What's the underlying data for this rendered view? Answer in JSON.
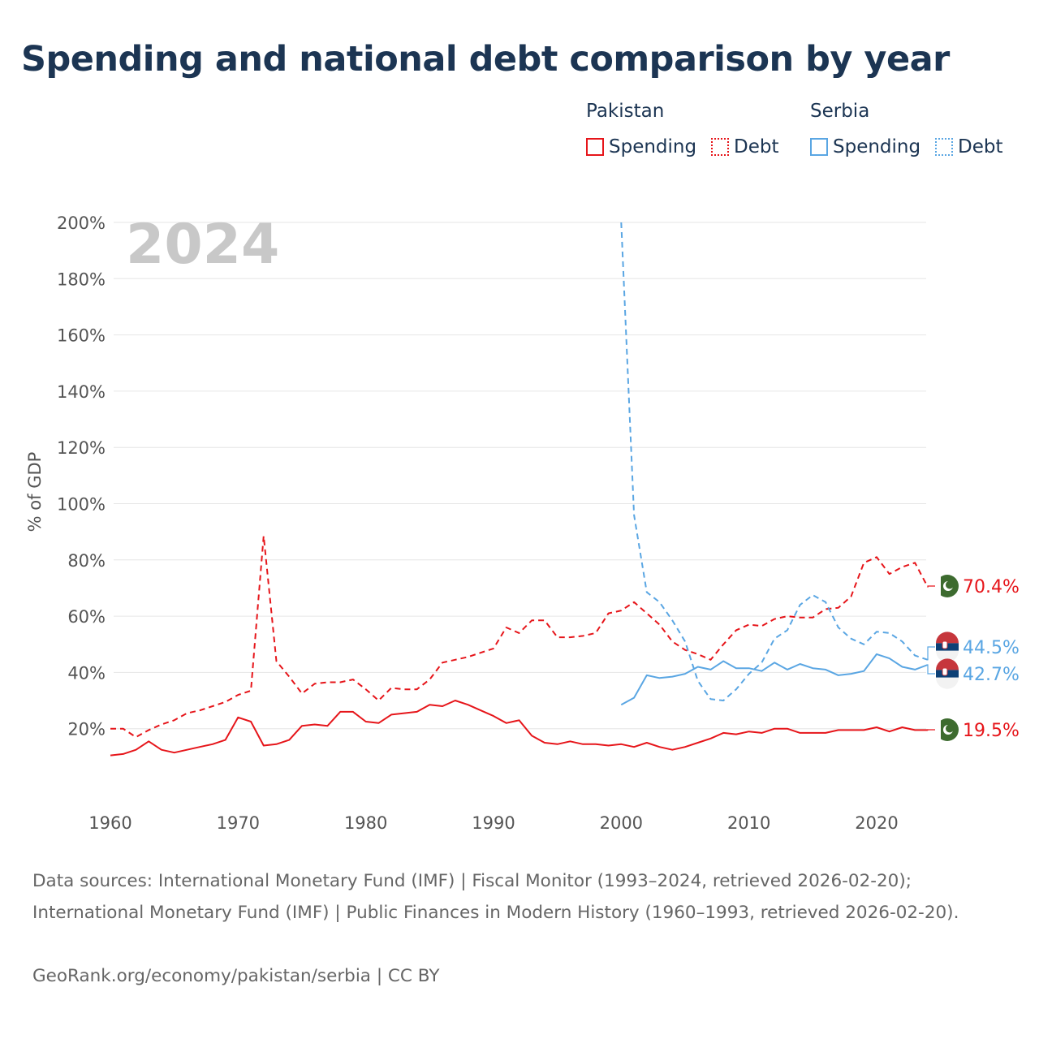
{
  "title": "Spending and national debt comparison by year",
  "legend": {
    "countries": [
      {
        "name": "Pakistan",
        "color": "#e6151a",
        "items": [
          {
            "label": "Spending",
            "style": "solid"
          },
          {
            "label": "Debt",
            "style": "dotted"
          }
        ]
      },
      {
        "name": "Serbia",
        "color": "#5aa6e3",
        "items": [
          {
            "label": "Spending",
            "style": "solid"
          },
          {
            "label": "Debt",
            "style": "dotted"
          }
        ]
      }
    ]
  },
  "year_watermark": "2024",
  "footer": {
    "sources": "Data sources: International Monetary Fund (IMF) | Fiscal Monitor (1993–2024, retrieved 2026-02-20); International Monetary Fund (IMF) | Public Finances in Modern History (1960–1993, retrieved 2026-02-20).",
    "credit": "GeoRank.org/economy/pakistan/serbia | CC BY"
  },
  "chart_data": {
    "type": "line",
    "title": "Spending and national debt comparison by year",
    "xlabel": "",
    "ylabel": "% of GDP",
    "xlim": [
      1960,
      2024
    ],
    "ylim": [
      0,
      200
    ],
    "x_ticks": [
      "1960",
      "1970",
      "1980",
      "1990",
      "2000",
      "2010",
      "2020"
    ],
    "y_ticks": [
      "20%",
      "40%",
      "60%",
      "80%",
      "100%",
      "120%",
      "140%",
      "160%",
      "180%",
      "200%"
    ],
    "grid": true,
    "legend_position": "top-right",
    "series": [
      {
        "name": "Pakistan Debt",
        "country": "Pakistan",
        "kind": "Debt",
        "color": "#e6151a",
        "dash": true,
        "end_label": "70.4%",
        "flag": "pakistan",
        "x": [
          1960,
          1961,
          1962,
          1963,
          1964,
          1965,
          1966,
          1967,
          1968,
          1969,
          1970,
          1971,
          1972,
          1973,
          1974,
          1975,
          1976,
          1977,
          1978,
          1979,
          1980,
          1981,
          1982,
          1983,
          1984,
          1985,
          1986,
          1987,
          1988,
          1989,
          1990,
          1991,
          1992,
          1993,
          1994,
          1995,
          1996,
          1997,
          1998,
          1999,
          2000,
          2001,
          2002,
          2003,
          2004,
          2005,
          2006,
          2007,
          2008,
          2009,
          2010,
          2011,
          2012,
          2013,
          2014,
          2015,
          2016,
          2017,
          2018,
          2019,
          2020,
          2021,
          2022,
          2023,
          2024
        ],
        "values": [
          20,
          20,
          17,
          19.5,
          21.5,
          23,
          25.5,
          26.5,
          28,
          29.5,
          32,
          33.5,
          88.5,
          44,
          38.5,
          32.5,
          36,
          36.5,
          36.5,
          37.5,
          34,
          30,
          34.5,
          34,
          34,
          37.5,
          43.5,
          44.5,
          45.5,
          47,
          48.5,
          56,
          54,
          58.5,
          58.5,
          52.5,
          52.5,
          53,
          54,
          61,
          62,
          65,
          61,
          57,
          51,
          48,
          46.5,
          44.5,
          50,
          55,
          57,
          56.5,
          59,
          60,
          59.5,
          59.5,
          62.5,
          63,
          67,
          79,
          81,
          75,
          77.5,
          79,
          70.4
        ]
      },
      {
        "name": "Pakistan Spending",
        "country": "Pakistan",
        "kind": "Spending",
        "color": "#e6151a",
        "dash": false,
        "end_label": "19.5%",
        "flag": "pakistan",
        "x": [
          1960,
          1961,
          1962,
          1963,
          1964,
          1965,
          1966,
          1967,
          1968,
          1969,
          1970,
          1971,
          1972,
          1973,
          1974,
          1975,
          1976,
          1977,
          1978,
          1979,
          1980,
          1981,
          1982,
          1983,
          1984,
          1985,
          1986,
          1987,
          1988,
          1989,
          1990,
          1991,
          1992,
          1993,
          1994,
          1995,
          1996,
          1997,
          1998,
          1999,
          2000,
          2001,
          2002,
          2003,
          2004,
          2005,
          2006,
          2007,
          2008,
          2009,
          2010,
          2011,
          2012,
          2013,
          2014,
          2015,
          2016,
          2017,
          2018,
          2019,
          2020,
          2021,
          2022,
          2023,
          2024
        ],
        "values": [
          10.5,
          11,
          12.5,
          15.5,
          12.5,
          11.5,
          12.5,
          13.5,
          14.5,
          16,
          24,
          22.5,
          14,
          14.5,
          16,
          21,
          21.5,
          21,
          26,
          26,
          22.5,
          22,
          25,
          25.5,
          26,
          28.5,
          28,
          30,
          28.5,
          26.5,
          24.5,
          22,
          23,
          17.5,
          15,
          14.5,
          15.5,
          14.5,
          14.5,
          14,
          14.5,
          13.5,
          15,
          13.5,
          12.5,
          13.5,
          15,
          16.5,
          18.5,
          18,
          19,
          18.5,
          20,
          20,
          18.5,
          18.5,
          18.5,
          19.5,
          19.5,
          19.5,
          20.5,
          19,
          20.5,
          19.5,
          19.5
        ]
      },
      {
        "name": "Serbia Debt",
        "country": "Serbia",
        "kind": "Debt",
        "color": "#5aa6e3",
        "dash": true,
        "end_label": "44.5%",
        "flag": "serbia",
        "x": [
          2000,
          2001,
          2002,
          2003,
          2004,
          2005,
          2006,
          2007,
          2008,
          2009,
          2010,
          2011,
          2012,
          2013,
          2014,
          2015,
          2016,
          2017,
          2018,
          2019,
          2020,
          2021,
          2022,
          2023,
          2024
        ],
        "values": [
          201,
          96,
          68.5,
          65,
          58.5,
          51,
          37,
          30.5,
          30,
          34,
          39.5,
          43.5,
          52,
          55,
          64,
          67.5,
          65,
          56,
          52,
          50,
          54.5,
          54,
          51,
          46,
          44.5
        ]
      },
      {
        "name": "Serbia Spending",
        "country": "Serbia",
        "kind": "Spending",
        "color": "#5aa6e3",
        "dash": false,
        "end_label": "42.7%",
        "flag": "serbia",
        "x": [
          2000,
          2001,
          2002,
          2003,
          2004,
          2005,
          2006,
          2007,
          2008,
          2009,
          2010,
          2011,
          2012,
          2013,
          2014,
          2015,
          2016,
          2017,
          2018,
          2019,
          2020,
          2021,
          2022,
          2023,
          2024
        ],
        "values": [
          28.5,
          31,
          39,
          38,
          38.5,
          39.5,
          42,
          41,
          44,
          41.5,
          41.5,
          40.5,
          43.5,
          41,
          43,
          41.5,
          41,
          39,
          39.5,
          40.5,
          46.5,
          45,
          42,
          41,
          42.7
        ]
      }
    ]
  }
}
